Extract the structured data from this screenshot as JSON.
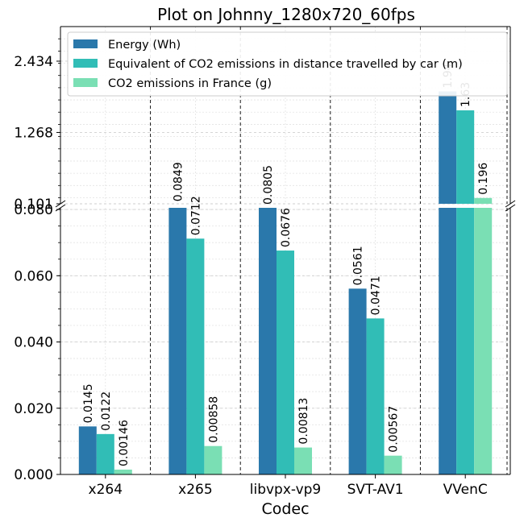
{
  "chart_data": {
    "type": "bar",
    "title": "Plot on Johnny_1280x720_60fps",
    "xlabel": "Codec",
    "ylabel": "",
    "categories": [
      "x264",
      "x265",
      "libvpx-vp9",
      "SVT-AV1",
      "VVenC"
    ],
    "series": [
      {
        "name": "Energy (Wh)",
        "color": "#2a78ab",
        "values": [
          0.0145,
          0.0849,
          0.0805,
          0.0561,
          1.94
        ],
        "labels": [
          "0.0145",
          "0.0849",
          "0.0805",
          "0.0561",
          "1.94"
        ]
      },
      {
        "name": "Equivalent of CO2 emissions in distance travelled by car (m)",
        "color": "#31bdb6",
        "values": [
          0.0122,
          0.0712,
          0.0676,
          0.0471,
          1.63
        ],
        "labels": [
          "0.0122",
          "0.0712",
          "0.0676",
          "0.0471",
          "1.63"
        ]
      },
      {
        "name": "CO2 emissions in France (g)",
        "color": "#7adfb4",
        "values": [
          0.00146,
          0.00858,
          0.00813,
          0.00567,
          0.196
        ],
        "labels": [
          "0.00146",
          "0.00858",
          "0.00813",
          "0.00567",
          "0.196"
        ]
      }
    ],
    "axis_break": true,
    "lower_axis": {
      "ylim": [
        0,
        0.0805
      ],
      "ticks": [
        0.0,
        0.02,
        0.04,
        0.06,
        0.08
      ],
      "tick_labels": [
        "0.000",
        "0.020",
        "0.040",
        "0.060",
        "0.080"
      ]
    },
    "upper_axis": {
      "ylim": [
        0.101,
        3.0
      ],
      "ticks": [
        0.101,
        1.268,
        2.434
      ],
      "tick_labels": [
        "0.101",
        "1.268",
        "2.434"
      ]
    },
    "grid": true,
    "legend_position": "top-right"
  }
}
